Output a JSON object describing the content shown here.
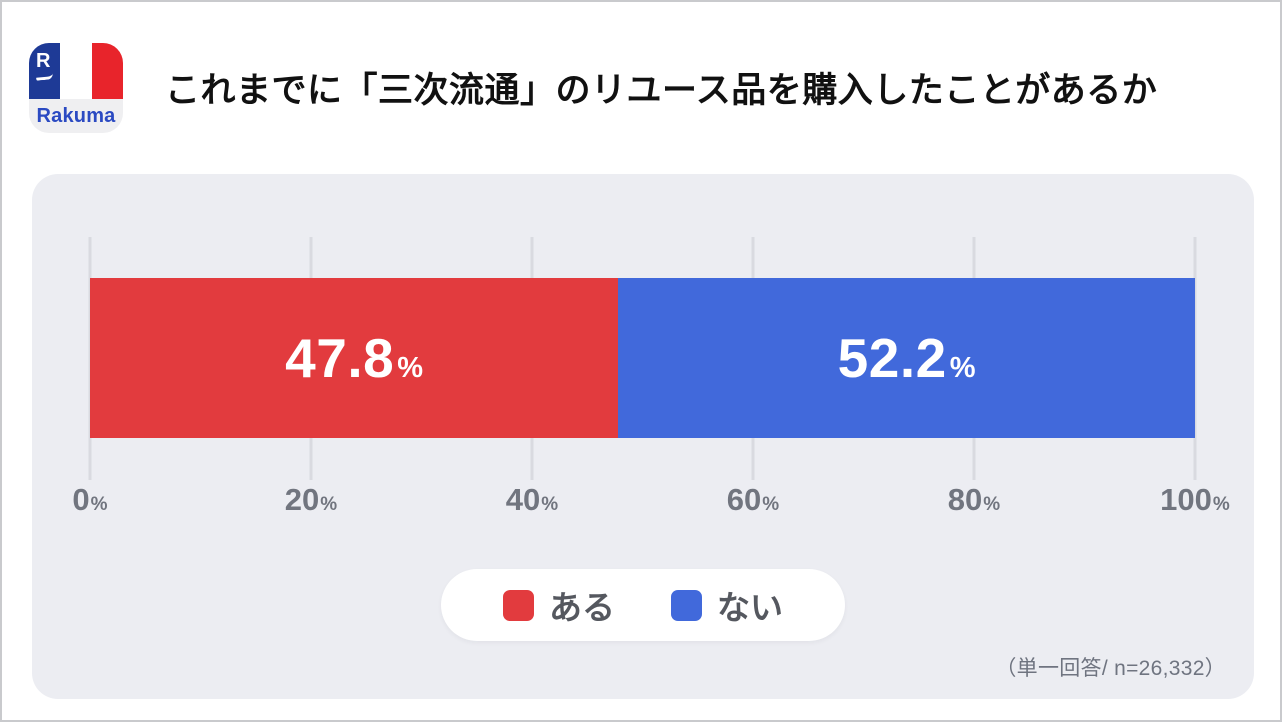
{
  "header": {
    "title": "これまでに「三次流通」のリユース品を購入したことがあるか",
    "logo": {
      "letter": "R",
      "brand": "Rakuma",
      "stripe_blue": "#1e3a96",
      "stripe_white": "#ffffff",
      "stripe_red": "#e8242b",
      "brand_text_color": "#2b4ac2",
      "band_bg": "#efeff1"
    }
  },
  "chart_data": {
    "type": "bar",
    "orientation": "horizontal",
    "stacked": true,
    "title": "これまでに「三次流通」のリユース品を購入したことがあるか",
    "unit": "%",
    "xlim": [
      0,
      100
    ],
    "x_ticks": [
      0,
      20,
      40,
      60,
      80,
      100
    ],
    "grid": true,
    "legend_position": "bottom",
    "series": [
      {
        "name": "ある",
        "value": 47.8,
        "color": "#e23b3e"
      },
      {
        "name": "ない",
        "value": 52.2,
        "color": "#4169db"
      }
    ],
    "note": "（単一回答/ n=26,332）"
  },
  "colors": {
    "panel_bg": "#ecedf2",
    "gridline": "#d9dae0",
    "tick_text": "#71757f",
    "legend_text": "#55585f",
    "note_text": "#6f7480",
    "title_text": "#111111"
  }
}
